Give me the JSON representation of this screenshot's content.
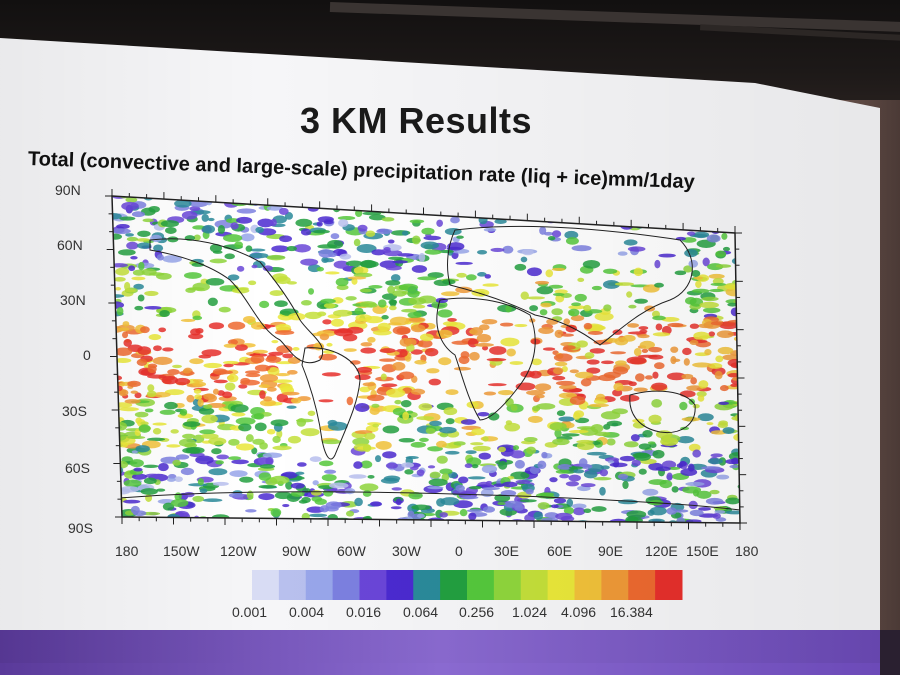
{
  "slide": {
    "title": "3 KM Results",
    "plot_title": "Total (convective and large-scale) precipitation rate (liq + ice)mm/1day"
  },
  "map": {
    "lat_labels": [
      "90N",
      "60N",
      "30N",
      "0",
      "30S",
      "60S",
      "90S"
    ],
    "lon_labels": [
      "180",
      "150W",
      "120W",
      "90W",
      "60W",
      "30W",
      "0",
      "30E",
      "60E",
      "90E",
      "120E",
      "150E",
      "180"
    ]
  },
  "legend": {
    "labels": [
      "0.001",
      "0.004",
      "0.016",
      "0.064",
      "0.256",
      "1.024",
      "4.096",
      "16.384"
    ],
    "colors": [
      "#d8dcf4",
      "#b8c0ee",
      "#98a6ea",
      "#7c80e0",
      "#6a46d8",
      "#4b2ad0",
      "#2a8a9a",
      "#23a040",
      "#55c83c",
      "#8fd63c",
      "#c4e03a",
      "#eae83a",
      "#f2c23a",
      "#f09a38",
      "#ee6a30",
      "#e8302c"
    ]
  }
}
